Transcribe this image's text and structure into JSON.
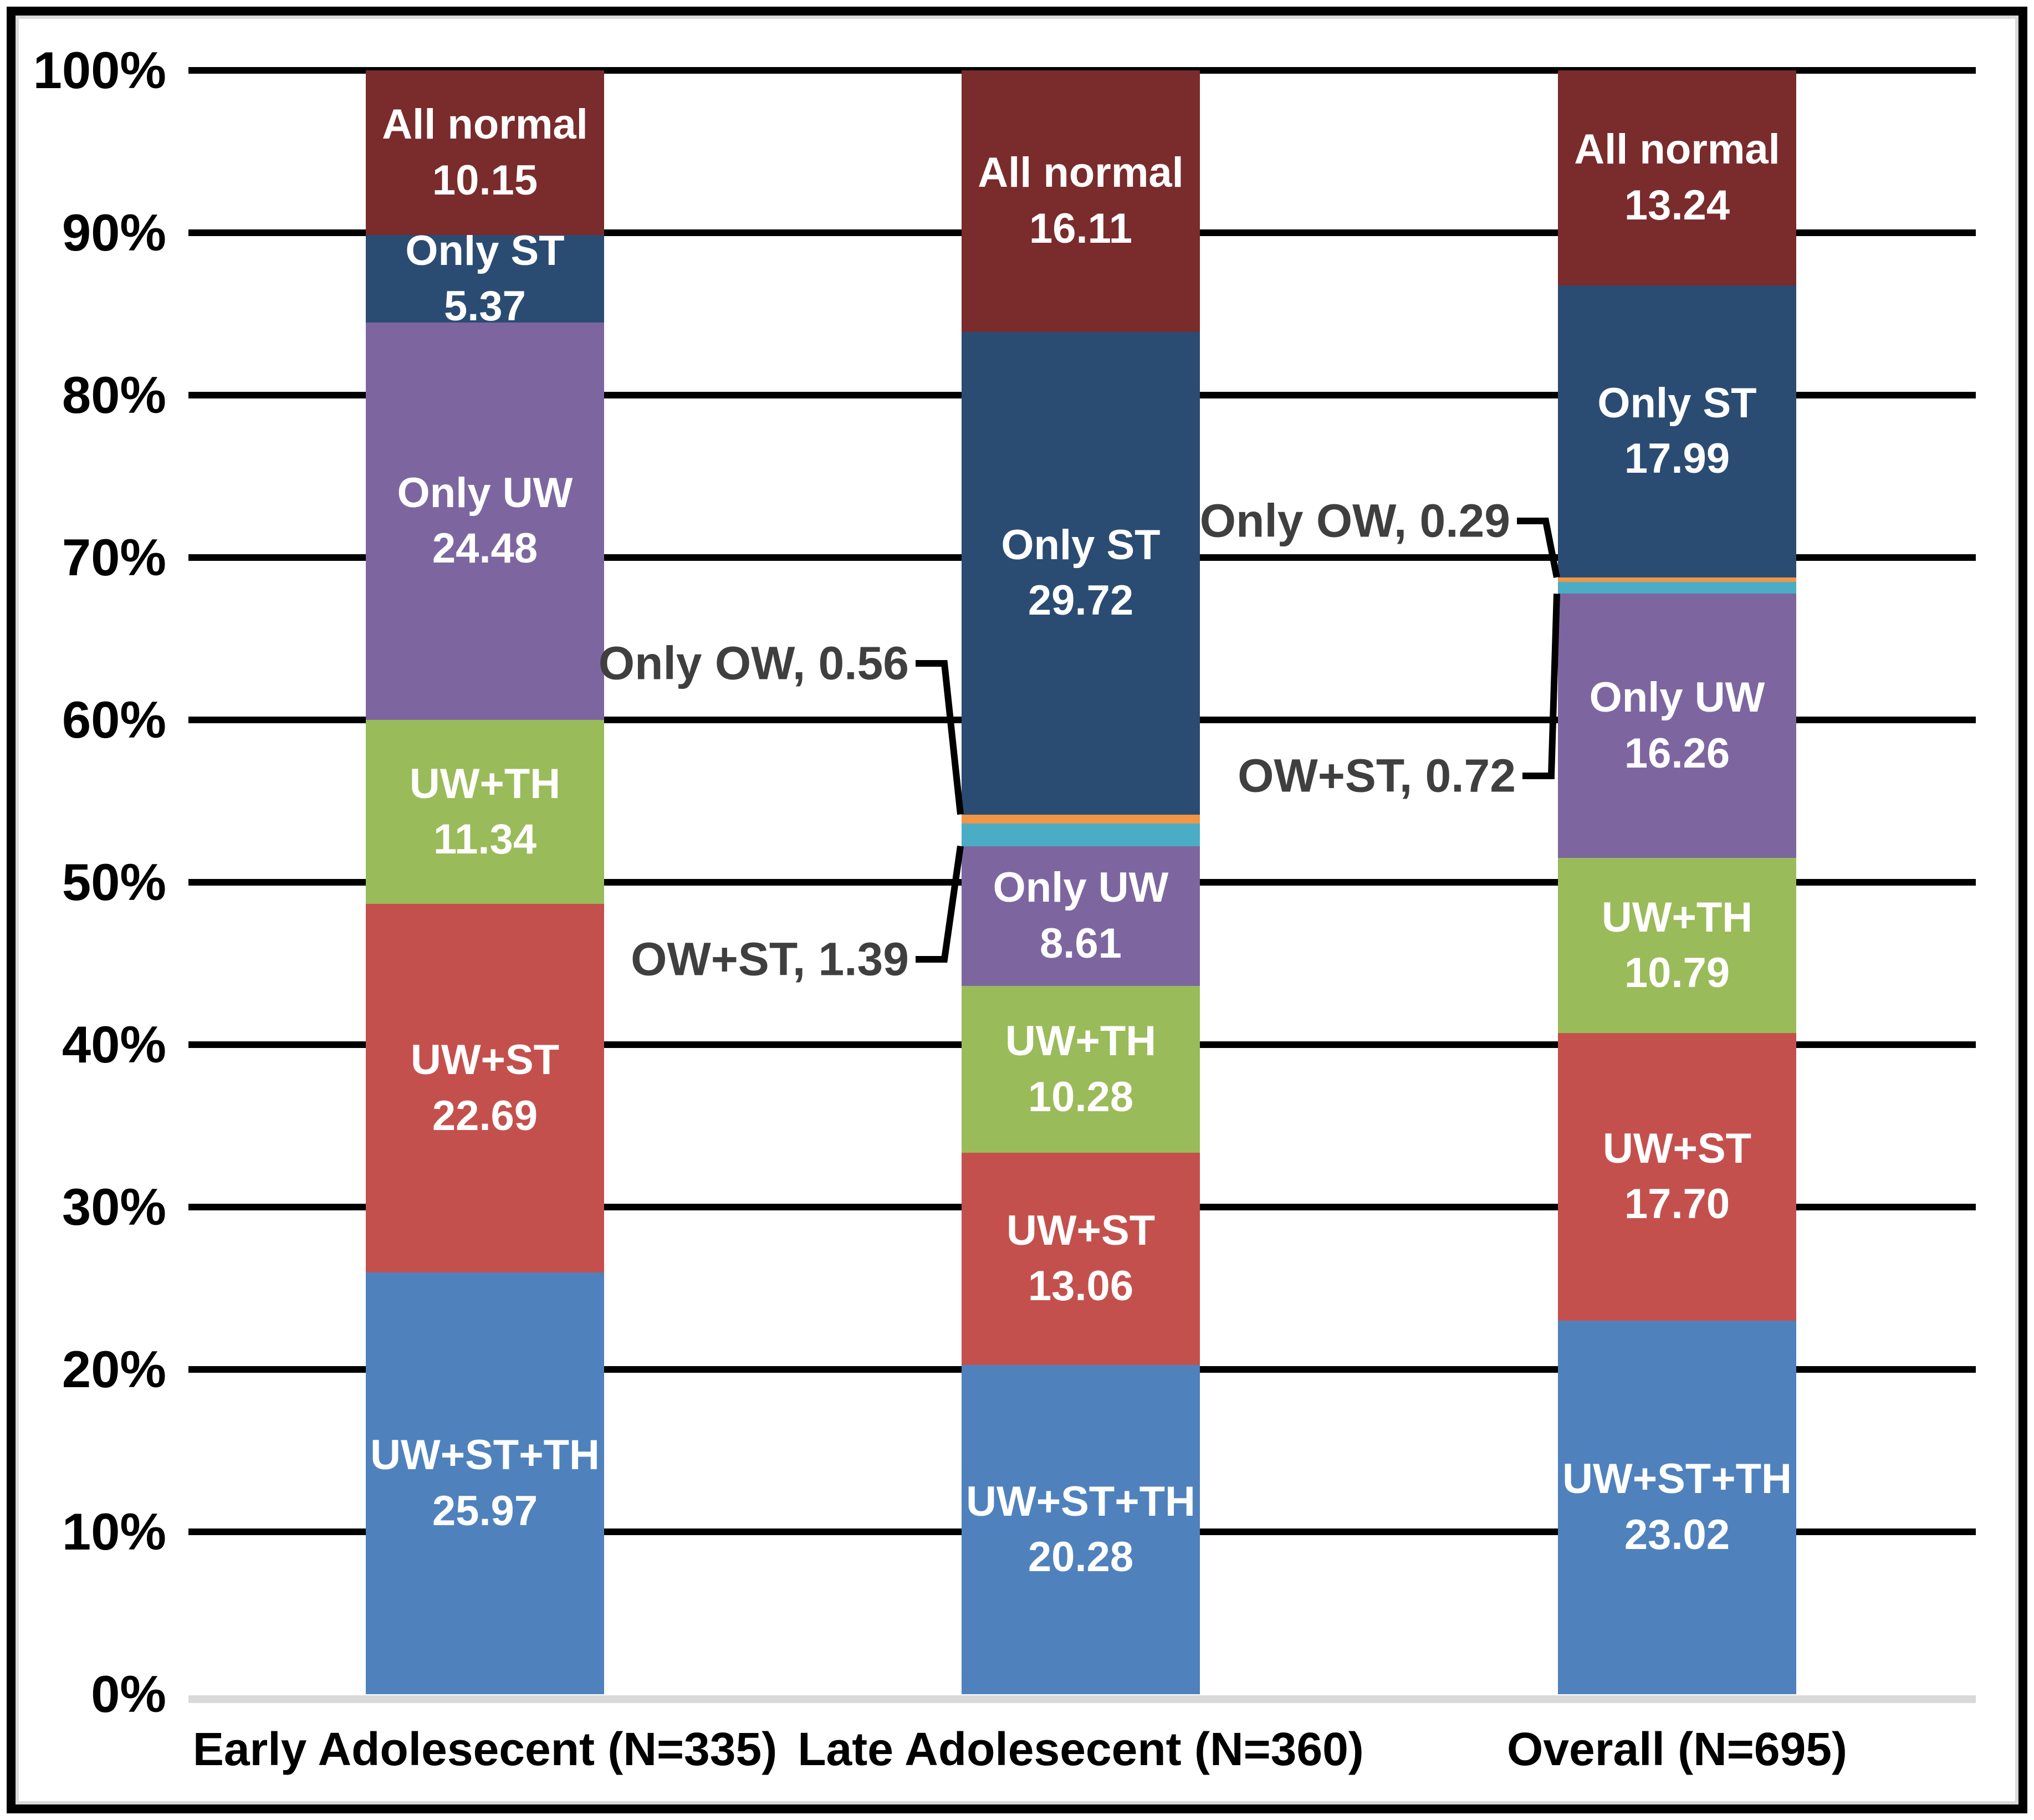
{
  "chart_data": {
    "type": "bar",
    "variant": "100%-stacked-column",
    "title": "",
    "categories": [
      "Early Adolesecent (N=335)",
      "Late Adolesecent (N=360)",
      "Overall (N=695)"
    ],
    "series": [
      {
        "name": "UW+ST+TH",
        "color": "#4F81BD",
        "values": [
          25.97,
          20.28,
          23.02
        ]
      },
      {
        "name": "UW+ST",
        "color": "#C4504D",
        "values": [
          22.69,
          13.06,
          17.7
        ]
      },
      {
        "name": "UW+TH",
        "color": "#9ABB59",
        "values": [
          11.34,
          10.28,
          10.79
        ]
      },
      {
        "name": "Only UW",
        "color": "#7D66A0",
        "values": [
          24.48,
          8.61,
          16.26
        ]
      },
      {
        "name": "OW+ST",
        "color": "#4BACC6",
        "values": [
          null,
          1.39,
          0.72
        ]
      },
      {
        "name": "Only OW",
        "color": "#F09646",
        "values": [
          null,
          0.56,
          0.29
        ]
      },
      {
        "name": "Only ST",
        "color": "#2B4C72",
        "values": [
          5.37,
          29.72,
          17.99
        ]
      },
      {
        "name": "All normal",
        "color": "#7A2B2B",
        "values": [
          10.15,
          16.11,
          13.24
        ]
      }
    ],
    "y_axis": {
      "range": [
        0,
        100
      ],
      "tick_step": 10,
      "ticks": [
        "0%",
        "10%",
        "20%",
        "30%",
        "40%",
        "50%",
        "60%",
        "70%",
        "80%",
        "90%",
        "100%"
      ],
      "grid": true
    },
    "legend": "none (labels inside segments)",
    "annotations": [
      {
        "label": "Only OW, 0.56",
        "category_index": 1,
        "series": "Only OW",
        "attach": "top",
        "label_right_x": 1640,
        "label_center_y": 1197
      },
      {
        "label": "OW+ST, 1.39",
        "category_index": 1,
        "series": "OW+ST",
        "attach": "bottom",
        "label_right_x": 1640,
        "label_center_y": 1731
      },
      {
        "label": "Only OW, 0.29",
        "category_index": 2,
        "series": "Only OW",
        "attach": "top",
        "label_right_x": 2725,
        "label_center_y": 940
      },
      {
        "label": "OW+ST, 0.72",
        "category_index": 2,
        "series": "OW+ST",
        "attach": "bottom",
        "label_right_x": 2735,
        "label_center_y": 1400
      }
    ],
    "colors": {
      "gridline": "#000000",
      "axis_band": "#D9D9D9",
      "callout_text": "#3F3F3F",
      "segment_label_text": "#FFFFFF",
      "axis_text": "#000000",
      "frame": "#000000",
      "chart_area_border": "#D9D9D9"
    }
  }
}
